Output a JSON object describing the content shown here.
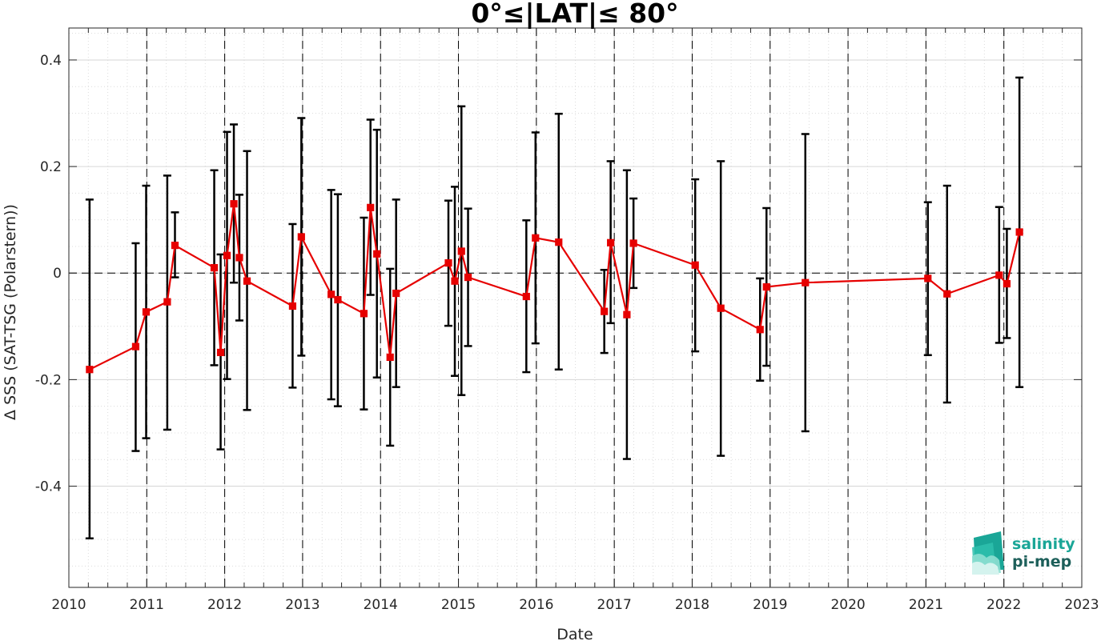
{
  "chart_data": {
    "type": "line",
    "title": "0°≤|LAT|≤ 80°",
    "xlabel": "Date",
    "ylabel": "Δ SSS (SAT-TSG (Polarstern))",
    "xlim": [
      "2010-01-01",
      "2023-01-01"
    ],
    "ylim": [
      -0.59,
      0.46
    ],
    "x_ticks": [
      "2010",
      "2011",
      "2012",
      "2013",
      "2014",
      "2015",
      "2016",
      "2017",
      "2018",
      "2019",
      "2020",
      "2021",
      "2022",
      "2023"
    ],
    "y_ticks": [
      -0.4,
      -0.2,
      0,
      0.2,
      0.4
    ],
    "y_tick_labels": [
      "-0.4",
      "-0.2",
      "0",
      "0.2",
      "0.4"
    ],
    "grid": true,
    "year_divider_lines": "dashed vertical at each year",
    "zero_line": "dashed horizontal at 0",
    "series": [
      {
        "color": "#e60000",
        "marker": "square",
        "points": [
          {
            "date": "2010-04-08",
            "y": -0.181,
            "err_low": -0.498,
            "err_high": 0.138
          },
          {
            "date": "2010-11-10",
            "y": -0.138,
            "err_low": -0.334,
            "err_high": 0.056
          },
          {
            "date": "2010-12-29",
            "y": -0.073,
            "err_low": -0.31,
            "err_high": 0.164
          },
          {
            "date": "2011-04-07",
            "y": -0.054,
            "err_low": -0.294,
            "err_high": 0.183
          },
          {
            "date": "2011-05-13",
            "y": 0.052,
            "err_low": -0.008,
            "err_high": 0.114
          },
          {
            "date": "2011-11-13",
            "y": 0.01,
            "err_low": -0.173,
            "err_high": 0.193
          },
          {
            "date": "2011-12-13",
            "y": -0.149,
            "err_low": -0.331,
            "err_high": 0.035
          },
          {
            "date": "2012-01-12",
            "y": 0.033,
            "err_low": -0.199,
            "err_high": 0.265
          },
          {
            "date": "2012-02-13",
            "y": 0.13,
            "err_low": -0.018,
            "err_high": 0.279
          },
          {
            "date": "2012-03-10",
            "y": 0.029,
            "err_low": -0.089,
            "err_high": 0.147
          },
          {
            "date": "2012-04-15",
            "y": -0.015,
            "err_low": -0.257,
            "err_high": 0.229
          },
          {
            "date": "2012-11-15",
            "y": -0.062,
            "err_low": -0.215,
            "err_high": 0.092
          },
          {
            "date": "2012-12-26",
            "y": 0.068,
            "err_low": -0.155,
            "err_high": 0.291
          },
          {
            "date": "2013-05-15",
            "y": -0.04,
            "err_low": -0.237,
            "err_high": 0.156
          },
          {
            "date": "2013-06-15",
            "y": -0.05,
            "err_low": -0.25,
            "err_high": 0.148
          },
          {
            "date": "2013-10-15",
            "y": -0.076,
            "err_low": -0.256,
            "err_high": 0.104
          },
          {
            "date": "2013-11-15",
            "y": 0.123,
            "err_low": -0.041,
            "err_high": 0.288
          },
          {
            "date": "2013-12-15",
            "y": 0.036,
            "err_low": -0.196,
            "err_high": 0.269
          },
          {
            "date": "2014-02-15",
            "y": -0.158,
            "err_low": -0.324,
            "err_high": 0.008
          },
          {
            "date": "2014-03-15",
            "y": -0.038,
            "err_low": -0.214,
            "err_high": 0.138
          },
          {
            "date": "2014-11-15",
            "y": 0.019,
            "err_low": -0.099,
            "err_high": 0.136
          },
          {
            "date": "2014-12-15",
            "y": -0.015,
            "err_low": -0.193,
            "err_high": 0.162
          },
          {
            "date": "2015-01-15",
            "y": 0.041,
            "err_low": -0.229,
            "err_high": 0.313
          },
          {
            "date": "2015-02-15",
            "y": -0.008,
            "err_low": -0.137,
            "err_high": 0.121
          },
          {
            "date": "2015-11-15",
            "y": -0.044,
            "err_low": -0.186,
            "err_high": 0.099
          },
          {
            "date": "2015-12-28",
            "y": 0.066,
            "err_low": -0.132,
            "err_high": 0.264
          },
          {
            "date": "2016-04-15",
            "y": 0.058,
            "err_low": -0.181,
            "err_high": 0.299
          },
          {
            "date": "2016-11-15",
            "y": -0.072,
            "err_low": -0.15,
            "err_high": 0.006
          },
          {
            "date": "2016-12-15",
            "y": 0.057,
            "err_low": -0.094,
            "err_high": 0.21
          },
          {
            "date": "2017-03-01",
            "y": -0.078,
            "err_low": -0.349,
            "err_high": 0.193
          },
          {
            "date": "2017-04-01",
            "y": 0.056,
            "err_low": -0.028,
            "err_high": 0.14
          },
          {
            "date": "2018-01-15",
            "y": 0.015,
            "err_low": -0.147,
            "err_high": 0.176
          },
          {
            "date": "2018-05-15",
            "y": -0.066,
            "err_low": -0.343,
            "err_high": 0.21
          },
          {
            "date": "2018-11-15",
            "y": -0.106,
            "err_low": -0.202,
            "err_high": -0.01
          },
          {
            "date": "2018-12-15",
            "y": -0.026,
            "err_low": -0.174,
            "err_high": 0.122
          },
          {
            "date": "2019-06-15",
            "y": -0.018,
            "err_low": -0.297,
            "err_high": 0.261
          },
          {
            "date": "2021-01-10",
            "y": -0.01,
            "err_low": -0.154,
            "err_high": 0.133
          },
          {
            "date": "2021-04-10",
            "y": -0.039,
            "err_low": -0.243,
            "err_high": 0.164
          },
          {
            "date": "2021-12-10",
            "y": -0.004,
            "err_low": -0.131,
            "err_high": 0.124
          },
          {
            "date": "2022-01-15",
            "y": -0.02,
            "err_low": -0.122,
            "err_high": 0.083
          },
          {
            "date": "2022-03-15",
            "y": 0.077,
            "err_low": -0.214,
            "err_high": 0.367
          }
        ]
      }
    ]
  },
  "logo": {
    "line1": "salinity",
    "line2": "pi-mep",
    "color1": "#1aa697",
    "color2": "#1d5f5a"
  },
  "colors": {
    "series": "#e60000",
    "errorbar": "#000000",
    "grid": "#dcdcdc",
    "axis": "#262626"
  }
}
